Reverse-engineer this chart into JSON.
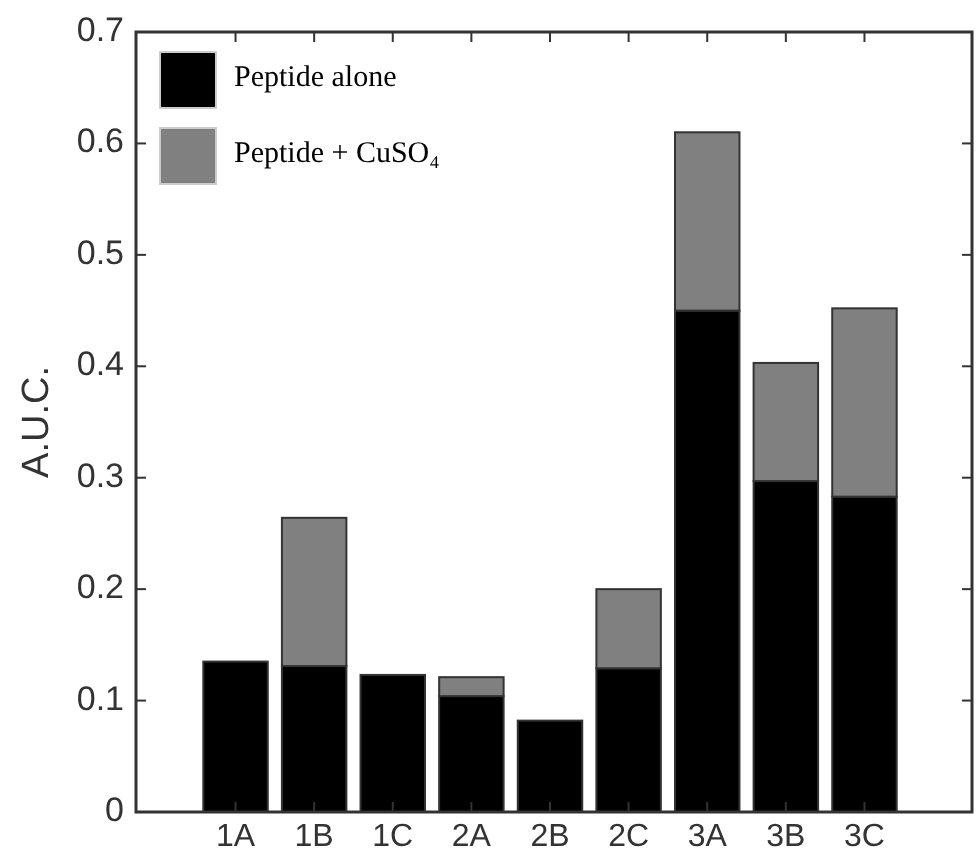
{
  "chart_data": {
    "type": "bar",
    "stacked": true,
    "ylabel": "A.U.C.",
    "categories": [
      "1A",
      "1B",
      "1C",
      "2A",
      "2B",
      "2C",
      "3A",
      "3B",
      "3C"
    ],
    "series": [
      {
        "name": "Peptide alone",
        "color": "#000000",
        "values": [
          0.135,
          0.131,
          0.123,
          0.104,
          0.082,
          0.129,
          0.45,
          0.297,
          0.283
        ]
      },
      {
        "name": "Peptide + CuSO₄",
        "color": "#808080",
        "values": [
          0,
          0.133,
          0,
          0.017,
          0,
          0.071,
          0.16,
          0.106,
          0.169
        ]
      }
    ],
    "ylim": [
      0,
      0.7
    ],
    "yticks": [
      0,
      0.1,
      0.2,
      0.3,
      0.4,
      0.5,
      0.6,
      0.7
    ],
    "legend": "top left"
  }
}
